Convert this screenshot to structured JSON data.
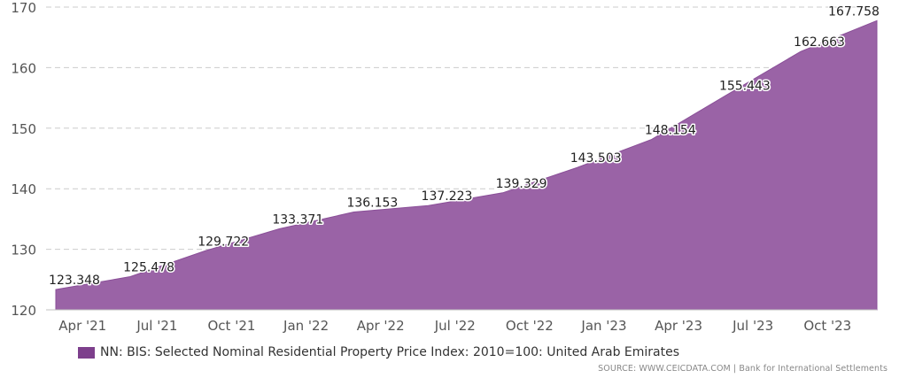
{
  "chart_data": {
    "type": "area",
    "title": "",
    "xlabel": "",
    "ylabel": "",
    "ylim": [
      120,
      170
    ],
    "yticks": [
      120,
      130,
      140,
      150,
      160,
      170
    ],
    "grid": "horizontal dashed",
    "x_tick_labels": [
      "Apr '21",
      "Jul '21",
      "Oct '21",
      "Jan '22",
      "Apr '22",
      "Jul '22",
      "Oct '22",
      "Jan '23",
      "Apr '23",
      "Jul '23",
      "Oct '23"
    ],
    "x": [
      "Mar '21",
      "Jun '21",
      "Sep '21",
      "Dec '21",
      "Mar '22",
      "Jun '22",
      "Sep '22",
      "Dec '22",
      "Mar '23",
      "Jun '23",
      "Sep '23",
      "Dec '23"
    ],
    "series": [
      {
        "name": "NN: BIS: Selected Nominal Residential Property Price Index: 2010=100: United Arab Emirates",
        "values": [
          123.348,
          125.478,
          129.722,
          133.371,
          136.153,
          137.223,
          139.329,
          143.503,
          148.154,
          155.443,
          162.663,
          167.758
        ],
        "color": "#9a63a6"
      }
    ]
  },
  "legend": {
    "label": "NN: BIS: Selected Nominal Residential Property Price Index: 2010=100: United Arab Emirates",
    "color": "#7d3f8c"
  },
  "source": "SOURCE: WWW.CEICDATA.COM | Bank for International Settlements"
}
